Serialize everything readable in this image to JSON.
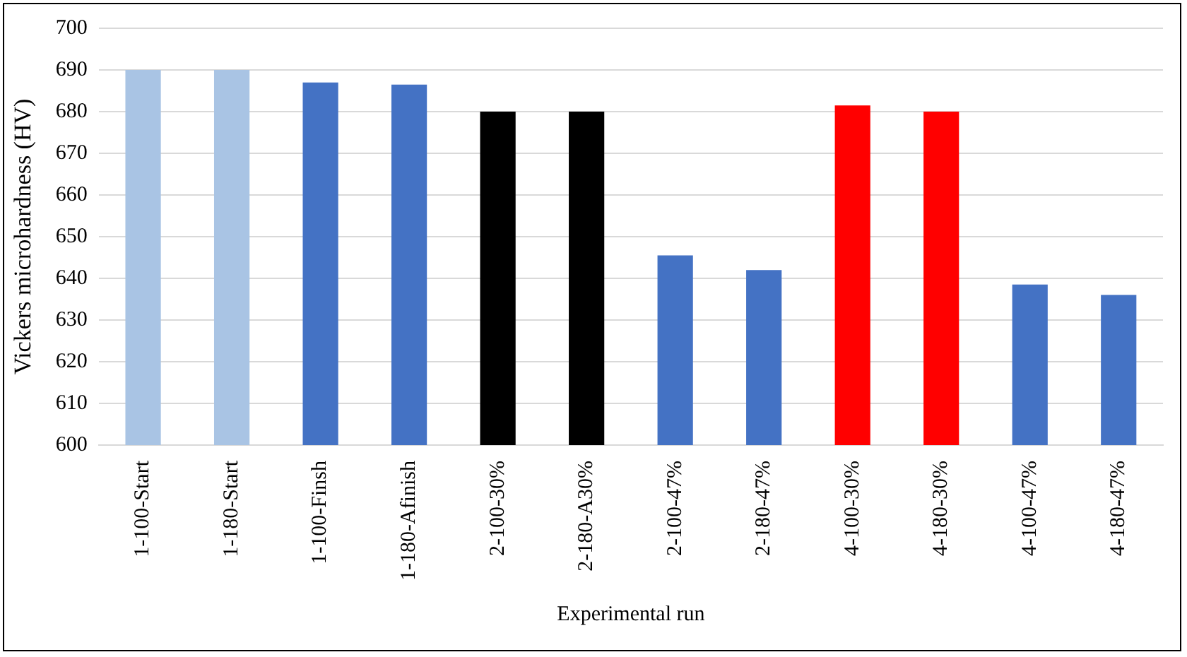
{
  "chart_data": {
    "type": "bar",
    "xlabel": "Experimental run",
    "ylabel": "Vickers microhardness (HV)",
    "categories": [
      "1-100-Start",
      "1-180-Start",
      "1-100-Finsh",
      "1-180-Afinish",
      "2-100-30%",
      "2-180-A30%",
      "2-100-47%",
      "2-180-47%",
      "4-100-30%",
      "4-180-30%",
      "4-100-47%",
      "4-180-47%"
    ],
    "values": [
      690,
      690,
      687,
      686.5,
      680,
      680,
      645.5,
      642,
      681.5,
      680,
      638.5,
      636
    ],
    "colors": [
      "#a9c4e4",
      "#a9c4e4",
      "#4472c4",
      "#4472c4",
      "#000000",
      "#000000",
      "#4472c4",
      "#4472c4",
      "#ff0000",
      "#ff0000",
      "#4472c4",
      "#4472c4"
    ],
    "ylim": [
      600,
      700
    ],
    "yticks": [
      600,
      610,
      620,
      630,
      640,
      650,
      660,
      670,
      680,
      690,
      700
    ],
    "grid": "y",
    "legend": false
  }
}
